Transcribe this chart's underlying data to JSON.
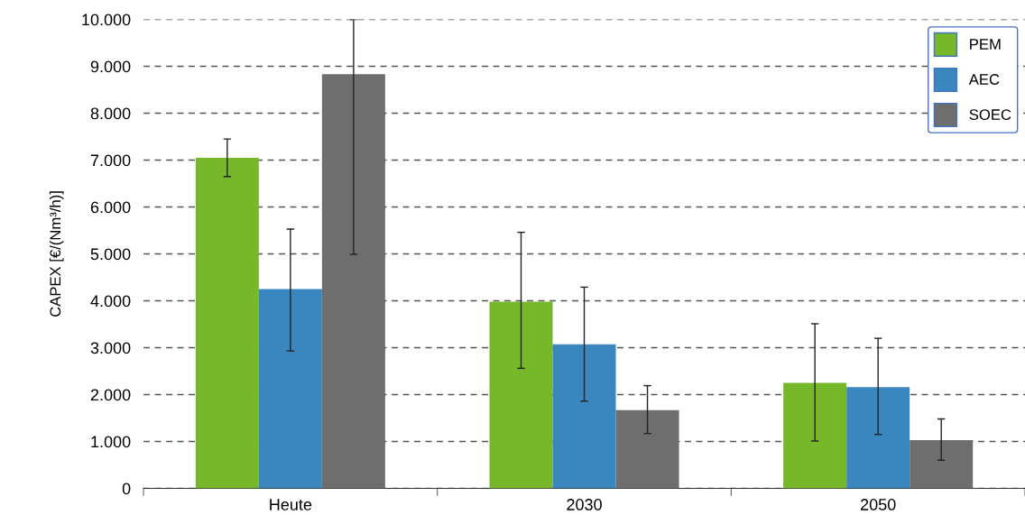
{
  "chart_data": {
    "type": "bar",
    "ylabel": "CAPEX [€/(Nm³/h)]",
    "categories": [
      "Heute",
      "2030",
      "2050"
    ],
    "series": [
      {
        "name": "PEM",
        "color": "#76b82a",
        "values": [
          7050,
          3980,
          2250
        ],
        "errors": [
          [
            6650,
            7450
          ],
          [
            2560,
            5460
          ],
          [
            1010,
            3510
          ]
        ]
      },
      {
        "name": "AEC",
        "color": "#3a87bf",
        "values": [
          4250,
          3070,
          2160
        ],
        "errors": [
          [
            2930,
            5530
          ],
          [
            1860,
            4290
          ],
          [
            1150,
            3200
          ]
        ]
      },
      {
        "name": "SOEC",
        "color": "#6d6e6d",
        "values": [
          8830,
          1670,
          1030
        ],
        "errors": [
          [
            4990,
            10000
          ],
          [
            1170,
            2190
          ],
          [
            600,
            1480
          ]
        ]
      }
    ],
    "ylim": [
      0,
      10000
    ],
    "yticks": [
      0,
      {
        "value": 1000,
        "label": "1.000"
      },
      {
        "value": 2000,
        "label": "2.000"
      },
      {
        "value": 3000,
        "label": "3.000"
      },
      {
        "value": 4000,
        "label": "4.000"
      },
      {
        "value": 5000,
        "label": "5.000"
      },
      {
        "value": 6000,
        "label": "6.000"
      },
      {
        "value": 7000,
        "label": "7.000"
      },
      {
        "value": 8000,
        "label": "8.000"
      },
      {
        "value": 9000,
        "label": "9.000"
      },
      {
        "value": 10000,
        "label": "10.000"
      }
    ],
    "grid": "y",
    "legend": "top right"
  }
}
